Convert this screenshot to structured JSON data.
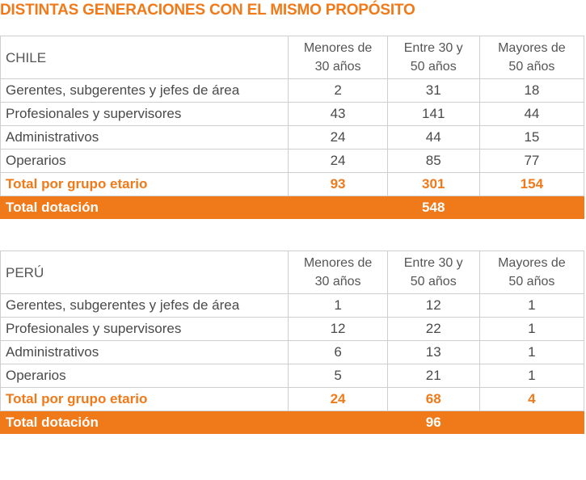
{
  "title": "DISTINTAS GENERACIONES CON EL MISMO PROPÓSITO",
  "headers": {
    "col1": [
      "Menores de",
      "30 años"
    ],
    "col2": [
      "Entre 30 y",
      "50 años"
    ],
    "col3": [
      "Mayores de",
      "50 años"
    ]
  },
  "tables": [
    {
      "country": "CHILE",
      "rows": [
        {
          "label": "Gerentes, subgerentes y jefes de área",
          "values": [
            "2",
            "31",
            "18"
          ]
        },
        {
          "label": "Profesionales y supervisores",
          "values": [
            "43",
            "141",
            "44"
          ]
        },
        {
          "label": "Administrativos",
          "values": [
            "24",
            "44",
            "15"
          ]
        },
        {
          "label": "Operarios",
          "values": [
            "24",
            "85",
            "77"
          ]
        }
      ],
      "subtotal": {
        "label": "Total por grupo etario",
        "values": [
          "93",
          "301",
          "154"
        ]
      },
      "total": {
        "label": "Total dotación",
        "value": "548"
      }
    },
    {
      "country": "PERÚ",
      "rows": [
        {
          "label": "Gerentes, subgerentes y jefes de área",
          "values": [
            "1",
            "12",
            "1"
          ]
        },
        {
          "label": "Profesionales y supervisores",
          "values": [
            "12",
            "22",
            "1"
          ]
        },
        {
          "label": "Administrativos",
          "values": [
            "6",
            "13",
            "1"
          ]
        },
        {
          "label": "Operarios",
          "values": [
            "5",
            "21",
            "1"
          ]
        }
      ],
      "subtotal": {
        "label": "Total por grupo etario",
        "values": [
          "24",
          "68",
          "4"
        ]
      },
      "total": {
        "label": "Total dotación",
        "value": "96"
      }
    }
  ],
  "colors": {
    "accent": "#f07a1a",
    "text": "#4a4a4a",
    "border": "#cfcfcf"
  }
}
